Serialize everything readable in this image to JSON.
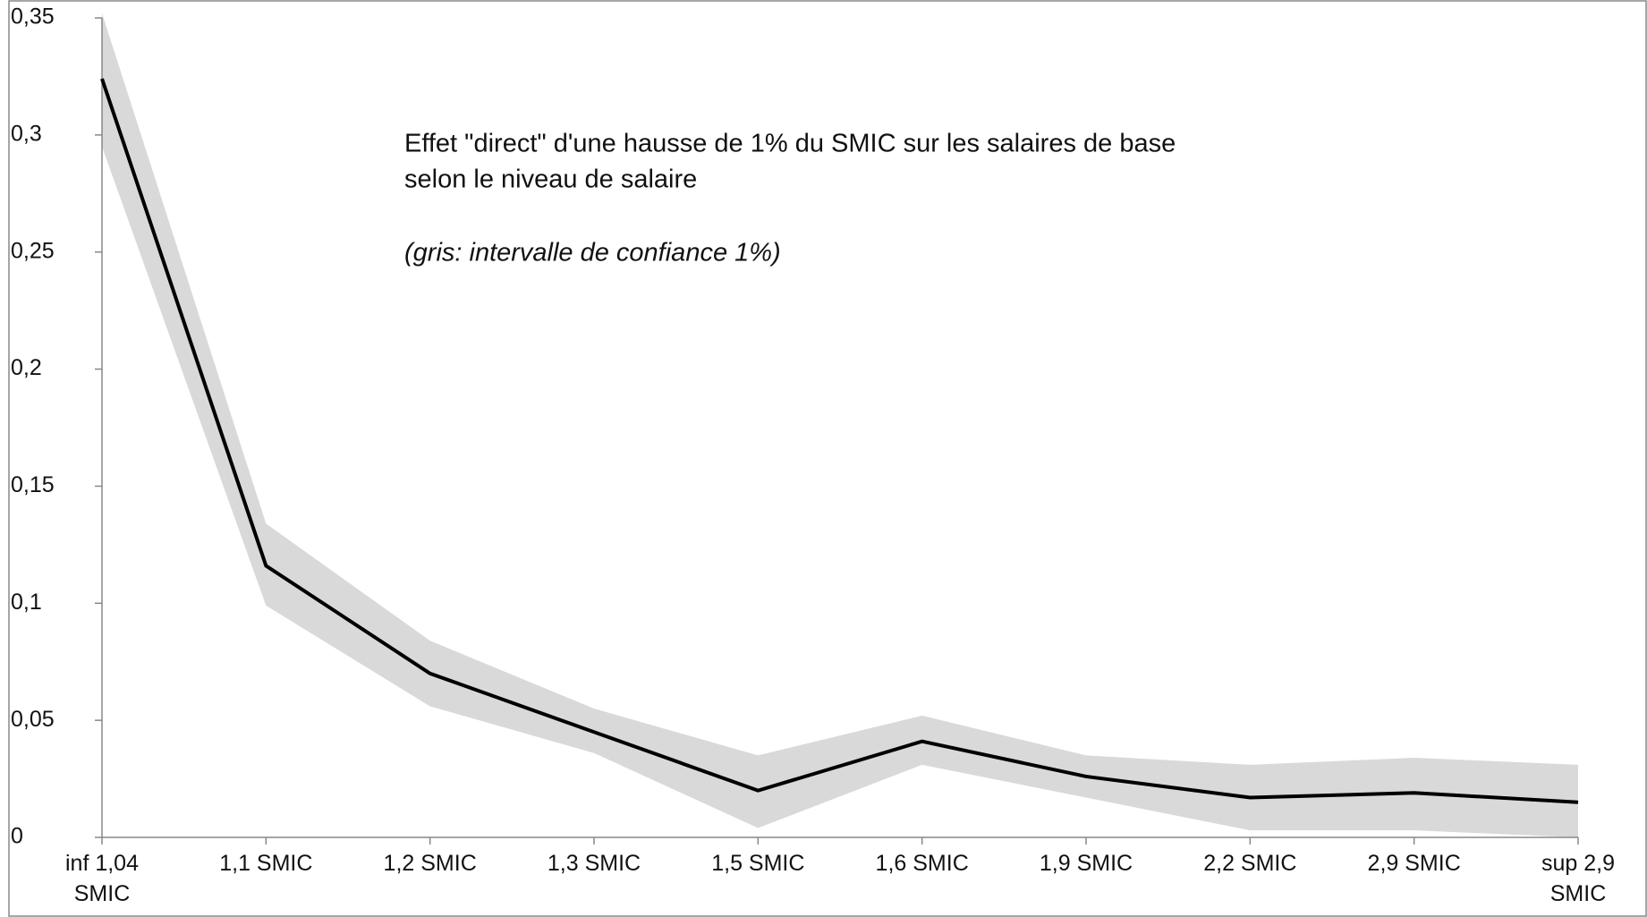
{
  "chart_data": {
    "type": "line",
    "title": "Effet \"direct\" d'une hausse de 1%  du SMIC sur les salaires de base",
    "subtitle": "selon le niveau de salaire",
    "annotation": "(gris: intervalle de confiance 1%)",
    "categories": [
      "inf 1,04 SMIC",
      "1,1 SMIC",
      "1,2 SMIC",
      "1,3 SMIC",
      "1,5 SMIC",
      "1,6 SMIC",
      "1,9 SMIC",
      "2,2 SMIC",
      "2,9 SMIC",
      "sup 2,9 SMIC"
    ],
    "values": [
      0.324,
      0.116,
      0.07,
      0.045,
      0.02,
      0.041,
      0.026,
      0.017,
      0.019,
      0.015
    ],
    "upper": [
      0.352,
      0.134,
      0.084,
      0.055,
      0.035,
      0.052,
      0.035,
      0.031,
      0.034,
      0.031
    ],
    "lower": [
      0.295,
      0.099,
      0.056,
      0.036,
      0.004,
      0.031,
      0.017,
      0.003,
      0.003,
      0.0
    ],
    "color": "#000000",
    "band_color": "#d9d9d9",
    "ylim": [
      0,
      0.35
    ],
    "yticks": [
      0,
      {
        "value": 0.05,
        "label": "0,05"
      },
      {
        "value": 0.1,
        "label": "0,1"
      },
      {
        "value": 0.15,
        "label": "0,15"
      },
      {
        "value": 0.2,
        "label": "0,2"
      },
      {
        "value": 0.25,
        "label": "0,25"
      },
      {
        "value": 0.3,
        "label": "0,3"
      },
      {
        "value": 0.35,
        "label": "0,35"
      }
    ],
    "grid": false
  }
}
